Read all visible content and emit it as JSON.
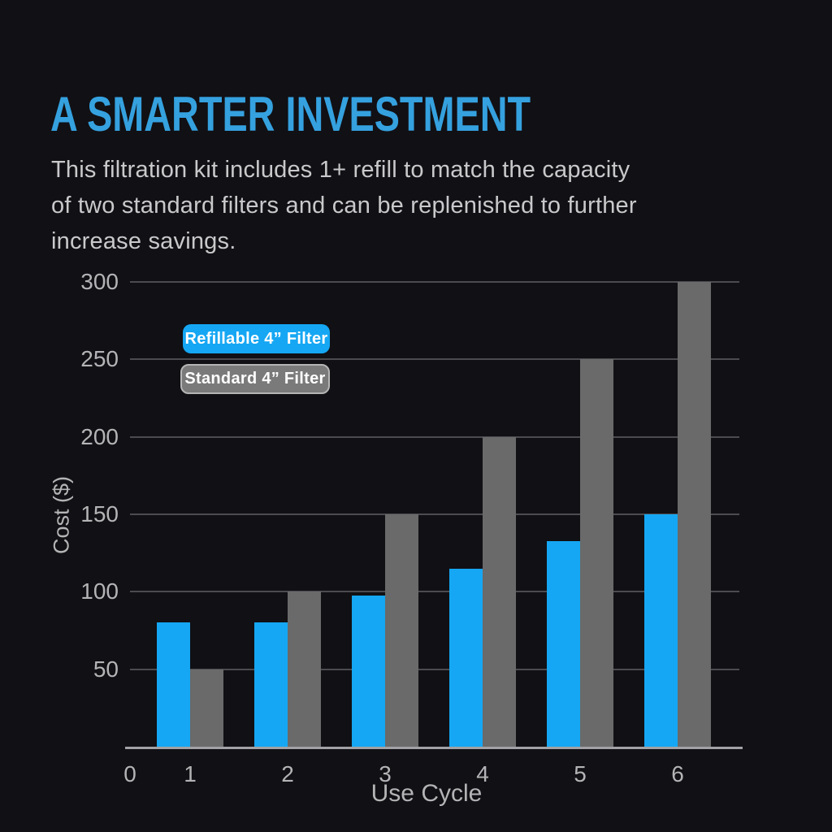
{
  "page": {
    "title": "A SMARTER INVESTMENT",
    "description_lines": [
      "This filtration kit includes 1+ refill to match the capacity",
      "of two standard filters and can be replenished to further",
      "increase savings."
    ]
  },
  "colors": {
    "background": "#111014",
    "title": "#35A1DF",
    "refillable": "#15A7F3",
    "standard": "#6A6A6A",
    "body_text": "#C9C9CB",
    "axis_text": "#B4B4B6",
    "gridline": "#4C4C50",
    "axis_line": "#A2A2A6",
    "legend_standard_bg": "#7A7A7A",
    "legend_standard_border": "#B5B5B5",
    "legend_text": "#FFFFFF"
  },
  "chart_data": {
    "type": "bar",
    "title": "",
    "xlabel": "Use Cycle",
    "ylabel": "Cost ($)",
    "categories": [
      1,
      2,
      3,
      4,
      5,
      6
    ],
    "x_tick_labels": [
      "0",
      "1",
      "2",
      "3",
      "4",
      "5",
      "6"
    ],
    "y_ticks": [
      50,
      100,
      150,
      200,
      250,
      300
    ],
    "ylim": [
      0,
      300
    ],
    "grid": true,
    "legend_position": "upper-left-inside",
    "series": [
      {
        "name": "Refillable 4” Filter",
        "color_key": "refillable",
        "values": [
          80,
          80,
          97.5,
          115,
          132.5,
          150
        ]
      },
      {
        "name": "Standard 4” Filter",
        "color_key": "standard",
        "values": [
          50,
          100,
          150,
          200,
          250,
          300
        ]
      }
    ]
  }
}
